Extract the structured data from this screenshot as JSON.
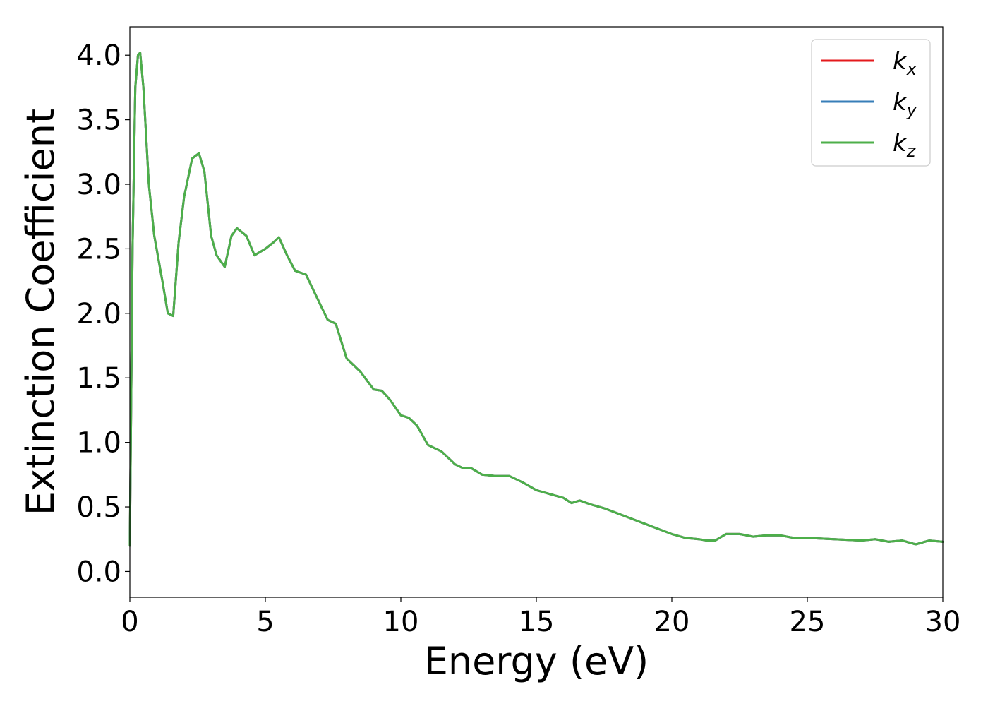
{
  "chart_data": {
    "type": "line",
    "title": "",
    "xlabel": "Energy (eV)",
    "ylabel": "Extinction Coefficient",
    "xlim": [
      0,
      30
    ],
    "ylim": [
      -0.2,
      4.22
    ],
    "xticks": [
      0,
      5,
      10,
      15,
      20,
      25,
      30
    ],
    "xtick_labels": [
      "0",
      "5",
      "10",
      "15",
      "20",
      "25",
      "30"
    ],
    "yticks": [
      0.0,
      0.5,
      1.0,
      1.5,
      2.0,
      2.5,
      3.0,
      3.5,
      4.0
    ],
    "ytick_labels": [
      "0.0",
      "0.5",
      "1.0",
      "1.5",
      "2.0",
      "2.5",
      "3.0",
      "3.5",
      "4.0"
    ],
    "grid": false,
    "legend": {
      "placement": "top-right"
    },
    "series": [
      {
        "name": "k_x",
        "label_base": "k",
        "label_sub": "x",
        "color": "#e41a1c",
        "x": [
          0.0,
          0.1,
          0.2,
          0.3,
          0.38,
          0.5,
          0.7,
          0.9,
          1.2,
          1.4,
          1.6,
          1.8,
          2.0,
          2.3,
          2.55,
          2.75,
          3.0,
          3.2,
          3.5,
          3.75,
          3.95,
          4.3,
          4.6,
          5.0,
          5.3,
          5.5,
          5.8,
          6.1,
          6.5,
          7.0,
          7.3,
          7.6,
          8.0,
          8.5,
          9.0,
          9.3,
          9.6,
          10.0,
          10.3,
          10.6,
          11.0,
          11.5,
          12.0,
          12.3,
          12.6,
          13.0,
          13.5,
          14.0,
          14.5,
          15.0,
          15.5,
          16.0,
          16.3,
          16.6,
          17.0,
          17.5,
          18.0,
          18.5,
          19.0,
          19.5,
          20.0,
          20.5,
          21.0,
          21.3,
          21.6,
          22.0,
          22.5,
          23.0,
          23.5,
          24.0,
          24.5,
          25.0,
          26.0,
          27.0,
          27.5,
          28.0,
          28.5,
          29.0,
          29.5,
          30.0
        ],
        "y": [
          0.2,
          2.5,
          3.75,
          4.0,
          4.02,
          3.75,
          3.0,
          2.6,
          2.25,
          2.0,
          1.98,
          2.55,
          2.9,
          3.2,
          3.24,
          3.1,
          2.6,
          2.45,
          2.36,
          2.6,
          2.66,
          2.6,
          2.45,
          2.5,
          2.55,
          2.59,
          2.45,
          2.33,
          2.3,
          2.08,
          1.95,
          1.92,
          1.65,
          1.55,
          1.41,
          1.4,
          1.33,
          1.21,
          1.19,
          1.13,
          0.98,
          0.93,
          0.83,
          0.8,
          0.8,
          0.75,
          0.74,
          0.74,
          0.69,
          0.63,
          0.6,
          0.57,
          0.53,
          0.55,
          0.52,
          0.49,
          0.45,
          0.41,
          0.37,
          0.33,
          0.29,
          0.26,
          0.25,
          0.24,
          0.24,
          0.29,
          0.29,
          0.27,
          0.28,
          0.28,
          0.26,
          0.26,
          0.25,
          0.24,
          0.25,
          0.23,
          0.24,
          0.21,
          0.24,
          0.23
        ]
      },
      {
        "name": "k_y",
        "label_base": "k",
        "label_sub": "y",
        "color": "#377eb8",
        "x": [
          0.0,
          0.1,
          0.2,
          0.3,
          0.38,
          0.5,
          0.7,
          0.9,
          1.2,
          1.4,
          1.6,
          1.8,
          2.0,
          2.3,
          2.55,
          2.75,
          3.0,
          3.2,
          3.5,
          3.75,
          3.95,
          4.3,
          4.6,
          5.0,
          5.3,
          5.5,
          5.8,
          6.1,
          6.5,
          7.0,
          7.3,
          7.6,
          8.0,
          8.5,
          9.0,
          9.3,
          9.6,
          10.0,
          10.3,
          10.6,
          11.0,
          11.5,
          12.0,
          12.3,
          12.6,
          13.0,
          13.5,
          14.0,
          14.5,
          15.0,
          15.5,
          16.0,
          16.3,
          16.6,
          17.0,
          17.5,
          18.0,
          18.5,
          19.0,
          19.5,
          20.0,
          20.5,
          21.0,
          21.3,
          21.6,
          22.0,
          22.5,
          23.0,
          23.5,
          24.0,
          24.5,
          25.0,
          26.0,
          27.0,
          27.5,
          28.0,
          28.5,
          29.0,
          29.5,
          30.0
        ],
        "y": [
          0.2,
          2.5,
          3.75,
          4.0,
          4.02,
          3.75,
          3.0,
          2.6,
          2.25,
          2.0,
          1.98,
          2.55,
          2.9,
          3.2,
          3.24,
          3.1,
          2.6,
          2.45,
          2.36,
          2.6,
          2.66,
          2.6,
          2.45,
          2.5,
          2.55,
          2.59,
          2.45,
          2.33,
          2.3,
          2.08,
          1.95,
          1.92,
          1.65,
          1.55,
          1.41,
          1.4,
          1.33,
          1.21,
          1.19,
          1.13,
          0.98,
          0.93,
          0.83,
          0.8,
          0.8,
          0.75,
          0.74,
          0.74,
          0.69,
          0.63,
          0.6,
          0.57,
          0.53,
          0.55,
          0.52,
          0.49,
          0.45,
          0.41,
          0.37,
          0.33,
          0.29,
          0.26,
          0.25,
          0.24,
          0.24,
          0.29,
          0.29,
          0.27,
          0.28,
          0.28,
          0.26,
          0.26,
          0.25,
          0.24,
          0.25,
          0.23,
          0.24,
          0.21,
          0.24,
          0.23
        ]
      },
      {
        "name": "k_z",
        "label_base": "k",
        "label_sub": "z",
        "color": "#4daf4a",
        "x": [
          0.0,
          0.1,
          0.2,
          0.3,
          0.38,
          0.5,
          0.7,
          0.9,
          1.2,
          1.4,
          1.6,
          1.8,
          2.0,
          2.3,
          2.55,
          2.75,
          3.0,
          3.2,
          3.5,
          3.75,
          3.95,
          4.3,
          4.6,
          5.0,
          5.3,
          5.5,
          5.8,
          6.1,
          6.5,
          7.0,
          7.3,
          7.6,
          8.0,
          8.5,
          9.0,
          9.3,
          9.6,
          10.0,
          10.3,
          10.6,
          11.0,
          11.5,
          12.0,
          12.3,
          12.6,
          13.0,
          13.5,
          14.0,
          14.5,
          15.0,
          15.5,
          16.0,
          16.3,
          16.6,
          17.0,
          17.5,
          18.0,
          18.5,
          19.0,
          19.5,
          20.0,
          20.5,
          21.0,
          21.3,
          21.6,
          22.0,
          22.5,
          23.0,
          23.5,
          24.0,
          24.5,
          25.0,
          26.0,
          27.0,
          27.5,
          28.0,
          28.5,
          29.0,
          29.5,
          30.0
        ],
        "y": [
          0.2,
          2.5,
          3.75,
          4.0,
          4.02,
          3.75,
          3.0,
          2.6,
          2.25,
          2.0,
          1.98,
          2.55,
          2.9,
          3.2,
          3.24,
          3.1,
          2.6,
          2.45,
          2.36,
          2.6,
          2.66,
          2.6,
          2.45,
          2.5,
          2.55,
          2.59,
          2.45,
          2.33,
          2.3,
          2.08,
          1.95,
          1.92,
          1.65,
          1.55,
          1.41,
          1.4,
          1.33,
          1.21,
          1.19,
          1.13,
          0.98,
          0.93,
          0.83,
          0.8,
          0.8,
          0.75,
          0.74,
          0.74,
          0.69,
          0.63,
          0.6,
          0.57,
          0.53,
          0.55,
          0.52,
          0.49,
          0.45,
          0.41,
          0.37,
          0.33,
          0.29,
          0.26,
          0.25,
          0.24,
          0.24,
          0.29,
          0.29,
          0.27,
          0.28,
          0.28,
          0.26,
          0.26,
          0.25,
          0.24,
          0.25,
          0.23,
          0.24,
          0.21,
          0.24,
          0.23
        ]
      }
    ]
  }
}
